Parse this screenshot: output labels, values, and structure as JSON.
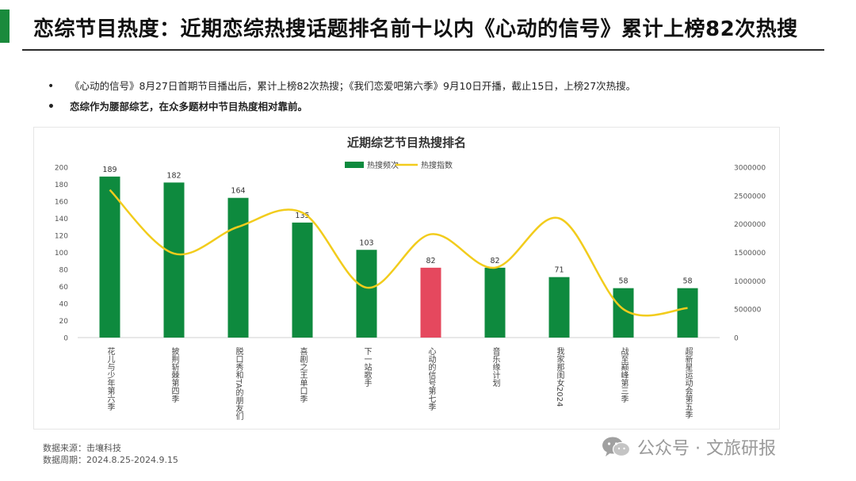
{
  "header": {
    "title": "恋综节目热度：近期恋综热搜话题排名前十以内《心动的信号》累计上榜82次热搜",
    "accent_color": "#1a8a3c"
  },
  "bullets": [
    {
      "text": "《心动的信号》8月27日首期节目播出后，累计上榜82次热搜；《我们恋爱吧第六季》9月10日开播，截止15日，上榜27次热搜。",
      "bold": false
    },
    {
      "text": "恋综作为腰部综艺，在众多题材中节目热度相对靠前。",
      "bold": true
    }
  ],
  "chart_data": {
    "type": "bar",
    "title": "近期综艺节目热搜排名",
    "categories": [
      "花儿与少年第六季",
      "披荆斩棘第四季",
      "脱口秀和TA的朋友们",
      "喜剧之王单口季",
      "下一站歌手",
      "心动的信号第七季",
      "音乐缘计划",
      "我家那闺女2024",
      "战至巅峰第三季",
      "超新星运动会第五季"
    ],
    "series": [
      {
        "name": "热搜频次",
        "type": "bar",
        "axis": "left",
        "color": "#0e8a3e",
        "highlight_index": 5,
        "highlight_color": "#e5485e",
        "values": [
          189,
          182,
          164,
          135,
          103,
          82,
          82,
          71,
          58,
          58
        ]
      },
      {
        "name": "热搜指数",
        "type": "line",
        "axis": "right",
        "color": "#f2cc1c",
        "values": [
          2600000,
          1480000,
          1950000,
          2200000,
          880000,
          1820000,
          1230000,
          2100000,
          500000,
          520000
        ]
      }
    ],
    "y_left": {
      "min": 0,
      "max": 200,
      "ticks": [
        0,
        20,
        40,
        60,
        80,
        100,
        120,
        140,
        160,
        180,
        200
      ]
    },
    "y_right": {
      "min": 0,
      "max": 3000000,
      "ticks": [
        0,
        500000,
        1000000,
        1500000,
        2000000,
        2500000,
        3000000
      ]
    },
    "legend_position": "top-center",
    "grid": false
  },
  "source": {
    "line1": "数据来源：击壤科技",
    "line2": "数据周期：2024.8.25-2024.9.15"
  },
  "watermark": {
    "text": "公众号 · 文旅研报",
    "icon": "wechat-icon"
  }
}
